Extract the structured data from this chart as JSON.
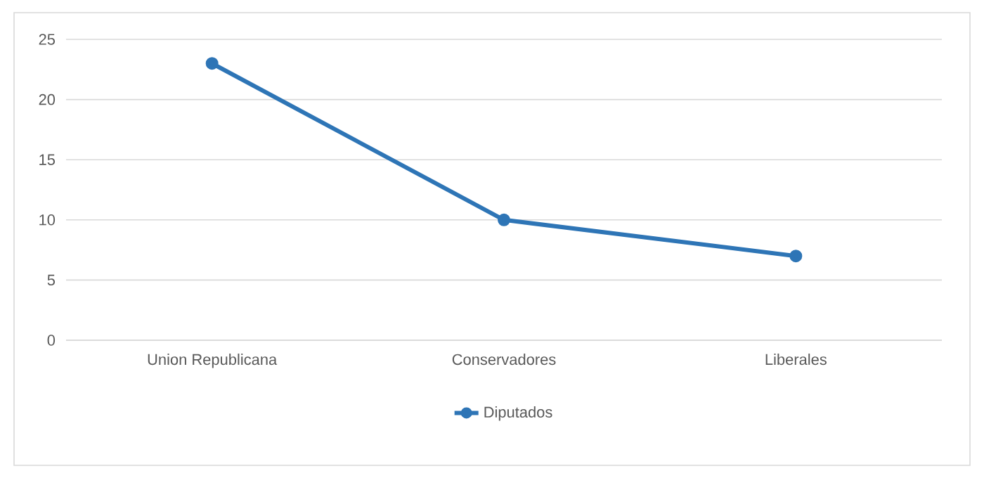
{
  "chart_data": {
    "type": "line",
    "categories": [
      "Union Republicana",
      "Conservadores",
      "Liberales"
    ],
    "series": [
      {
        "name": "Diputados",
        "color": "#2e75b6",
        "values": [
          23,
          10,
          7
        ]
      }
    ],
    "ylim": [
      0,
      25
    ],
    "yticks": [
      0,
      5,
      10,
      15,
      20,
      25
    ],
    "grid": "y",
    "legend": "bottom",
    "marker": "circle",
    "line_style": "solid"
  }
}
